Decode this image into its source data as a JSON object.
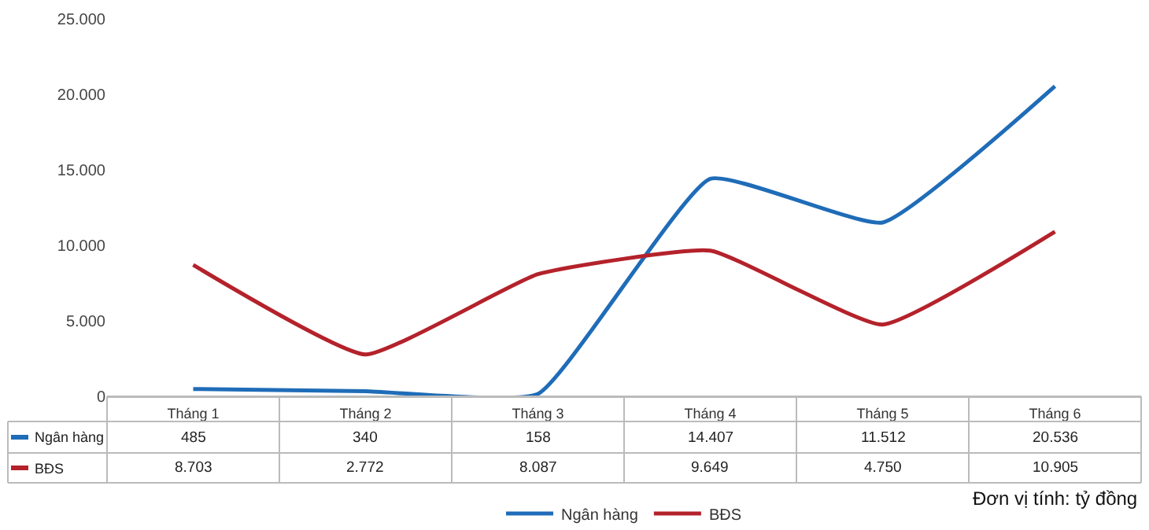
{
  "chart_data": {
    "type": "line",
    "categories": [
      "Tháng 1",
      "Tháng 2",
      "Tháng 3",
      "Tháng 4",
      "Tháng 5",
      "Tháng 6"
    ],
    "series": [
      {
        "name": "Ngân hàng",
        "color": "#1f6cb8",
        "values": [
          485,
          340,
          158,
          14407,
          11512,
          20536
        ],
        "value_labels": [
          "485",
          "340",
          "158",
          "14.407",
          "11.512",
          "20.536"
        ]
      },
      {
        "name": "BĐS",
        "color": "#b4222b",
        "values": [
          8703,
          2772,
          8087,
          9649,
          4750,
          10905
        ],
        "value_labels": [
          "8.703",
          "2.772",
          "8.087",
          "9.649",
          "4.750",
          "10.905"
        ]
      }
    ],
    "ylim": [
      0,
      25000
    ],
    "yticks": [
      0,
      {
        "value": 5000,
        "label": "5.000"
      },
      {
        "value": 10000,
        "label": "10.000"
      },
      {
        "value": 15000,
        "label": "15.000"
      },
      {
        "value": 20000,
        "label": "20.000"
      },
      {
        "value": 25000,
        "label": "25.000"
      }
    ],
    "legend": "bottom",
    "marker": "none",
    "line_style": "solid",
    "annotations": [
      "Đơn vị tính: tỷ đồng"
    ]
  }
}
